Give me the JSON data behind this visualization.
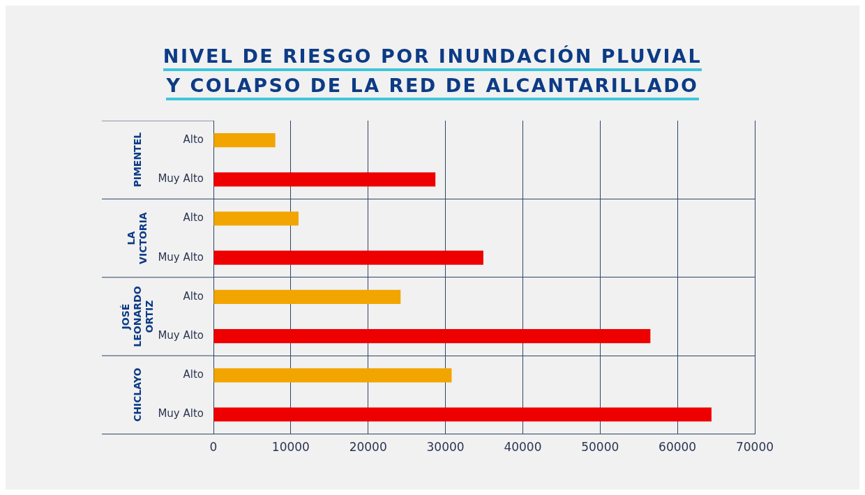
{
  "chart_data": {
    "type": "bar",
    "orientation": "horizontal",
    "title": "NIVEL DE RIESGO POR INUNDACIÓN PLUVIAL\nY COLAPSO DE LA RED DE ALCANTARILLADO",
    "categories": [
      "PIMENTEL",
      "LA VICTORIA",
      "JOSÉ LEONARDO ORTIZ",
      "CHICLAYO"
    ],
    "series": [
      {
        "name": "Alto",
        "color": "#f2a500",
        "values": [
          8000,
          11000,
          24200,
          30800
        ]
      },
      {
        "name": "Muy Alto",
        "color": "#ee0000",
        "values": [
          28700,
          34900,
          56500,
          64400
        ]
      }
    ],
    "xlim": [
      0,
      70000
    ],
    "xticks": [
      0,
      10000,
      20000,
      30000,
      40000,
      50000,
      60000,
      70000
    ],
    "grid": true,
    "legend": false
  }
}
